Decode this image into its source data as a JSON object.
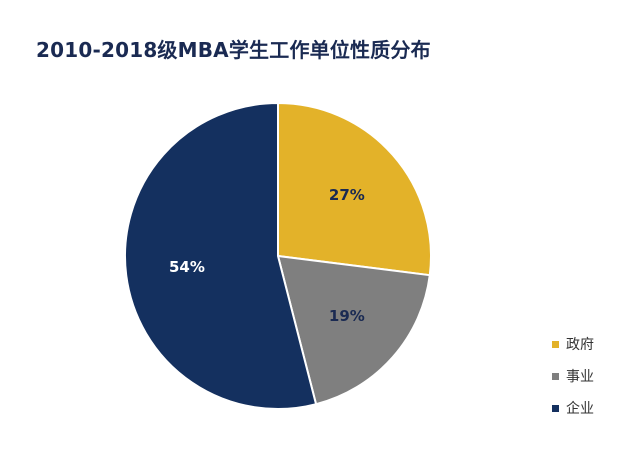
{
  "chart_data": {
    "type": "pie",
    "title": "2010-2018级MBA学生工作单位性质分布",
    "categories": [
      "政府",
      "事业",
      "企业"
    ],
    "values": [
      27,
      19,
      54
    ],
    "labels": [
      "27%",
      "19%",
      "54%"
    ],
    "colors": [
      "#e3b229",
      "#7f7f7f",
      "#14305f"
    ],
    "label_colors": [
      "#1a2a52",
      "#1a2a52",
      "#ffffff"
    ],
    "legend_position": "bottom-right",
    "start": "top, clockwise"
  }
}
